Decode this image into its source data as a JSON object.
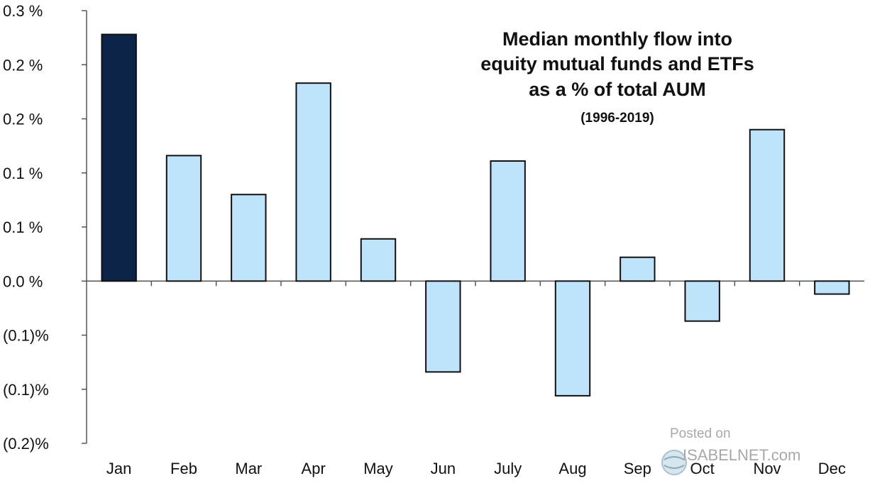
{
  "chart_data": {
    "type": "bar",
    "title_lines": [
      "Median monthly flow into",
      "equity mutual funds and ETFs",
      "as a % of total AUM"
    ],
    "subtitle": "(1996-2019)",
    "categories": [
      "Jan",
      "Feb",
      "Mar",
      "Apr",
      "May",
      "Jun",
      "July",
      "Aug",
      "Sep",
      "Oct",
      "Nov",
      "Dec"
    ],
    "values": [
      0.228,
      0.116,
      0.08,
      0.183,
      0.039,
      -0.084,
      0.111,
      -0.106,
      0.022,
      -0.037,
      0.14,
      -0.012
    ],
    "highlight_category": "Jan",
    "ylim": [
      -0.15,
      0.25
    ],
    "yticks": [
      0.25,
      0.2,
      0.15,
      0.1,
      0.05,
      0.0,
      -0.05,
      -0.1,
      -0.15
    ],
    "ytick_labels": [
      "0.3 %",
      "0.2 %",
      "0.2 %",
      "0.1 %",
      "0.1 %",
      "0.0 %",
      "(0.1)%",
      "(0.1)%",
      "(0.2)%"
    ],
    "xlabel": "",
    "ylabel": "",
    "grid": false,
    "colors": {
      "highlight": "#0c2447",
      "bar": "#bfe3fb",
      "outline": "#111111",
      "axis": "#555555"
    }
  },
  "watermark": {
    "posted_on": "Posted on",
    "brand": "ISABELNET.com"
  }
}
